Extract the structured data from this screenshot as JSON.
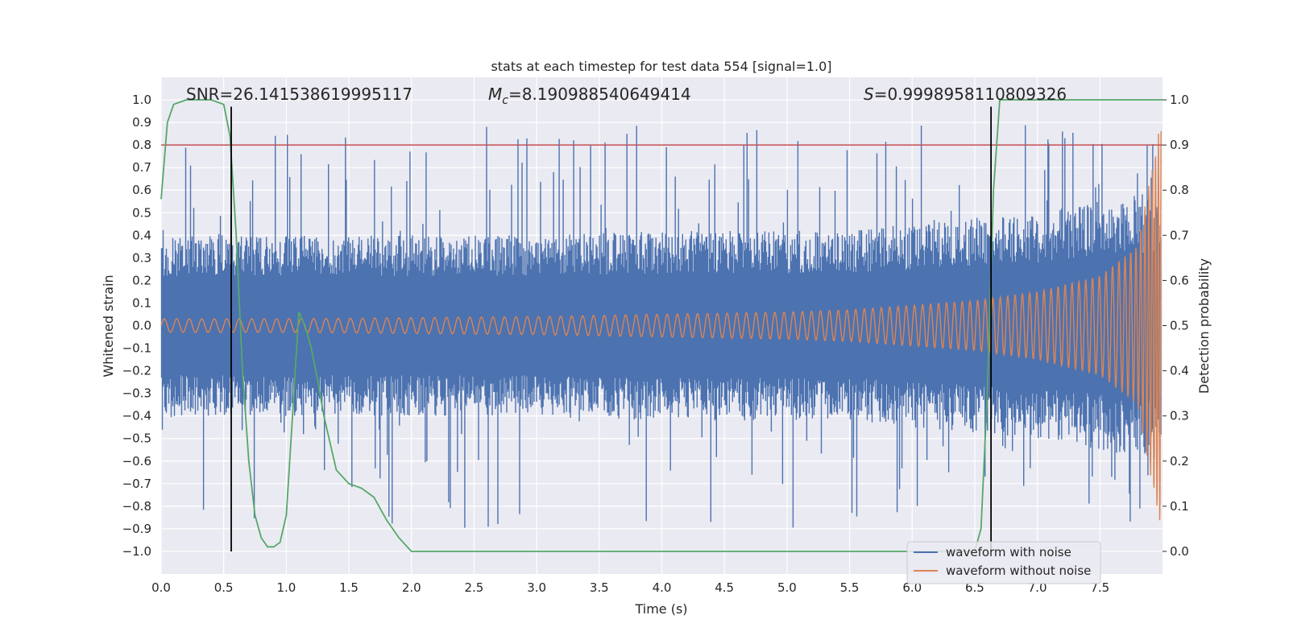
{
  "chart_data": {
    "type": "line",
    "title": "stats at each timestep for test data 554 [signal=1.0]",
    "xlabel": "Time (s)",
    "ylabel": "Whitened strain",
    "y2label": "Detection probability",
    "xlim": [
      0.0,
      8.0
    ],
    "ylim": [
      -1.1,
      1.1
    ],
    "y2lim": [
      -0.05,
      1.05
    ],
    "x_ticks": [
      "0.0",
      "0.5",
      "1.0",
      "1.5",
      "2.0",
      "2.5",
      "3.0",
      "3.5",
      "4.0",
      "4.5",
      "5.0",
      "5.5",
      "6.0",
      "6.5",
      "7.0",
      "7.5"
    ],
    "y_ticks": [
      "−1.0",
      "−0.9",
      "−0.8",
      "−0.7",
      "−0.6",
      "−0.5",
      "−0.4",
      "−0.3",
      "−0.2",
      "−0.1",
      "0.0",
      "0.1",
      "0.2",
      "0.3",
      "0.4",
      "0.5",
      "0.6",
      "0.7",
      "0.8",
      "0.9",
      "1.0"
    ],
    "y2_ticks": [
      "0.0",
      "0.1",
      "0.2",
      "0.3",
      "0.4",
      "0.5",
      "0.6",
      "0.7",
      "0.8",
      "0.9",
      "1.0"
    ],
    "grid": true,
    "legend_position": "lower-right",
    "annotations": {
      "snr": "SNR=26.141538619995117",
      "mc_symbol": "M",
      "mc_sub": "c",
      "mc_value": "=8.190988540649414",
      "s_symbol": "S",
      "s_value": "=0.9998958110809326"
    },
    "series": [
      {
        "name": "waveform with noise",
        "axis": "left",
        "color": "#4c72b0",
        "description_kind": "noisy strain envelope",
        "envelope_x": [
          0.0,
          1.0,
          2.0,
          3.0,
          4.0,
          5.0,
          5.5,
          6.0,
          6.5,
          7.0,
          7.5,
          8.0
        ],
        "envelope_amp": [
          0.4,
          0.4,
          0.4,
          0.4,
          0.42,
          0.42,
          0.42,
          0.45,
          0.48,
          0.5,
          0.55,
          0.6
        ],
        "spike_max": 0.9
      },
      {
        "name": "waveform without noise",
        "axis": "left",
        "color": "#dd8452",
        "x": [
          0.0,
          1.0,
          2.0,
          3.0,
          4.0,
          5.0,
          5.5,
          6.0,
          6.5,
          7.0,
          7.5,
          7.8,
          8.0
        ],
        "amplitude": [
          0.03,
          0.03,
          0.035,
          0.04,
          0.05,
          0.06,
          0.07,
          0.09,
          0.11,
          0.15,
          0.22,
          0.35,
          0.95
        ]
      },
      {
        "name": "",
        "axis": "right",
        "color": "#55a868",
        "x": [
          0.0,
          0.05,
          0.1,
          0.2,
          0.3,
          0.4,
          0.5,
          0.55,
          0.6,
          0.65,
          0.7,
          0.75,
          0.8,
          0.85,
          0.9,
          0.95,
          1.0,
          1.05,
          1.1,
          1.15,
          1.2,
          1.25,
          1.3,
          1.4,
          1.5,
          1.6,
          1.7,
          1.8,
          1.9,
          2.0,
          3.0,
          4.0,
          5.0,
          6.0,
          6.5,
          6.55,
          6.6,
          6.65,
          6.7,
          7.0,
          7.5,
          8.0
        ],
        "y": [
          0.78,
          0.95,
          0.99,
          1.0,
          1.0,
          1.0,
          0.99,
          0.92,
          0.7,
          0.4,
          0.2,
          0.08,
          0.03,
          0.01,
          0.01,
          0.02,
          0.08,
          0.3,
          0.53,
          0.5,
          0.45,
          0.38,
          0.3,
          0.18,
          0.15,
          0.14,
          0.12,
          0.07,
          0.03,
          0.0,
          0.0,
          0.0,
          0.0,
          0.0,
          0.0,
          0.05,
          0.35,
          0.8,
          1.0,
          1.0,
          1.0,
          1.0
        ]
      }
    ],
    "hlines": [
      {
        "axis": "right",
        "y": 0.9,
        "color": "#c44e52"
      }
    ],
    "vlines": [
      {
        "x": 0.56,
        "ymin": -1.0,
        "ymax": 0.97,
        "color": "#000000"
      },
      {
        "x": 6.63,
        "ymin": -1.0,
        "ymax": 0.97,
        "color": "#000000"
      }
    ]
  }
}
